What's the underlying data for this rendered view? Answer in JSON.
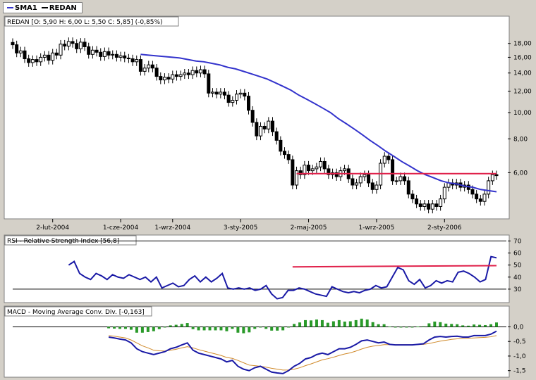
{
  "legend": {
    "items": [
      {
        "label": "SMA1",
        "color": "#3333cc"
      },
      {
        "label": "REDAN",
        "color": "#000000"
      }
    ]
  },
  "colors": {
    "background": "#d4d0c8",
    "panel": "#ffffff",
    "sma": "#3333cc",
    "resistance": "#e0204a",
    "rsi": "#1a1aa6",
    "macd": "#1a1aa6",
    "signal": "#d08a2a",
    "histogram": "#2a9a2a"
  },
  "chart_data": [
    {
      "type": "candlestick",
      "title": "REDAN [O: 5,90  H: 6,00  L: 5,50  C: 5,85] (-0,85%)",
      "y_scale": "log",
      "ylim": [
        4.2,
        20.5
      ],
      "yticks": [
        "18,00",
        "16,00",
        "14,00",
        "12,00",
        "10,00",
        "8,00",
        "6,00"
      ],
      "ytick_values": [
        18,
        16,
        14,
        12,
        10,
        8,
        6
      ],
      "x_labels": [
        "2-lut-2004",
        "1-cze-2004",
        "1-wrz-2004",
        "3-sty-2005",
        "2-maj-2005",
        "1-wrz-2005",
        "2-sty-2006"
      ],
      "x_label_positions": [
        10,
        27,
        40,
        57,
        74,
        91,
        108
      ],
      "n_weeks": 122,
      "close": [
        17.8,
        16.6,
        16.9,
        15.8,
        15.3,
        15.7,
        15.4,
        16.0,
        16.3,
        15.6,
        16.6,
        16.3,
        17.9,
        17.6,
        18.3,
        18.0,
        17.2,
        18.2,
        17.5,
        16.4,
        17.0,
        16.7,
        16.1,
        16.8,
        16.3,
        16.4,
        16.0,
        16.2,
        15.9,
        15.8,
        15.4,
        15.7,
        14.2,
        14.6,
        15.0,
        14.6,
        13.6,
        13.2,
        13.5,
        13.3,
        13.8,
        13.6,
        13.8,
        14.0,
        13.8,
        14.3,
        14.0,
        14.4,
        13.9,
        11.8,
        11.9,
        11.7,
        11.9,
        11.6,
        10.9,
        11.1,
        11.7,
        11.8,
        11.5,
        10.2,
        9.2,
        8.2,
        8.9,
        8.7,
        9.3,
        8.5,
        7.9,
        7.2,
        7.0,
        6.7,
        5.4,
        6.1,
        5.9,
        6.4,
        6.1,
        6.2,
        6.3,
        6.6,
        6.2,
        5.9,
        6.0,
        5.8,
        6.1,
        6.2,
        5.7,
        5.4,
        5.5,
        5.8,
        5.9,
        5.5,
        5.2,
        5.4,
        6.5,
        6.9,
        6.7,
        5.6,
        5.6,
        5.8,
        5.6,
        5.0,
        4.8,
        4.6,
        4.5,
        4.6,
        4.4,
        4.6,
        4.5,
        4.8,
        5.3,
        5.5,
        5.4,
        5.5,
        5.3,
        5.4,
        5.2,
        5.0,
        4.8,
        4.7,
        5.0,
        5.6,
        5.9,
        5.85
      ],
      "sma": [
        16.4,
        16.3,
        16.2,
        16.1,
        16.0,
        15.9,
        15.7,
        15.5,
        15.4,
        15.2,
        15.0,
        14.7,
        14.5,
        14.2,
        13.9,
        13.6,
        13.3,
        12.9,
        12.5,
        12.1,
        11.6,
        11.2,
        10.8,
        10.4,
        10.0,
        9.5,
        9.1,
        8.7,
        8.3,
        7.9,
        7.55,
        7.2,
        6.9,
        6.6,
        6.35,
        6.1,
        5.9,
        5.75,
        5.6,
        5.5,
        5.45,
        5.35,
        5.3,
        5.2,
        5.15,
        5.1
      ],
      "sma_start_week": 32,
      "resistance": {
        "value": 5.95,
        "from_week": 71,
        "to_week": 121
      }
    },
    {
      "type": "line",
      "title": "RSI - Relative Strength Index [56,8]",
      "ylim": [
        20,
        72
      ],
      "yticks": [
        "70",
        "60",
        "50",
        "40",
        "30"
      ],
      "ytick_values": [
        70,
        60,
        50,
        40,
        30
      ],
      "reference_lines": [
        30,
        70
      ],
      "start_week": 14,
      "values": [
        50,
        53,
        43,
        40,
        38,
        43,
        41,
        38,
        42,
        40,
        39,
        42,
        40,
        38,
        40,
        36,
        40,
        31,
        33,
        35,
        32,
        33,
        38,
        41,
        36,
        40,
        36,
        39,
        43,
        31,
        30,
        31,
        30,
        31,
        29,
        30,
        33,
        26,
        22,
        23,
        29,
        29,
        31,
        30,
        28,
        26,
        25,
        24,
        32,
        30,
        28,
        27,
        28,
        27,
        29,
        30,
        33,
        31,
        32,
        40,
        48,
        46,
        37,
        34,
        38,
        31,
        33,
        37,
        35,
        37,
        36,
        44,
        45,
        43,
        40,
        36,
        38,
        57,
        56
      ],
      "resistance": {
        "value": 48.5,
        "x_from_week": 70,
        "x_to_week": 121,
        "y_from": 48.5,
        "y_to": 49.5
      }
    },
    {
      "type": "line",
      "title": "MACD - Moving Average Conv. Div. [-0,163]",
      "ylim": [
        -1.7,
        0.3
      ],
      "yticks": [
        "0,0",
        "-0,5",
        "-1,0",
        "-1,5"
      ],
      "ytick_values": [
        0,
        -0.5,
        -1.0,
        -1.5
      ],
      "zero_line": 0,
      "start_week": 24,
      "macd": [
        -0.35,
        -0.38,
        -0.42,
        -0.45,
        -0.55,
        -0.75,
        -0.85,
        -0.9,
        -0.95,
        -0.9,
        -0.85,
        -0.75,
        -0.7,
        -0.62,
        -0.55,
        -0.8,
        -0.9,
        -0.95,
        -1.0,
        -1.05,
        -1.1,
        -1.2,
        -1.15,
        -1.35,
        -1.45,
        -1.5,
        -1.4,
        -1.35,
        -1.45,
        -1.55,
        -1.58,
        -1.6,
        -1.5,
        -1.35,
        -1.25,
        -1.1,
        -1.05,
        -0.95,
        -0.9,
        -0.95,
        -0.85,
        -0.75,
        -0.75,
        -0.7,
        -0.6,
        -0.48,
        -0.45,
        -0.5,
        -0.55,
        -0.52,
        -0.6,
        -0.62,
        -0.62,
        -0.62,
        -0.62,
        -0.6,
        -0.58,
        -0.45,
        -0.35,
        -0.33,
        -0.35,
        -0.33,
        -0.32,
        -0.35,
        -0.35,
        -0.3,
        -0.3,
        -0.3,
        -0.25,
        -0.15
      ],
      "signal": [
        -0.3,
        -0.32,
        -0.35,
        -0.38,
        -0.45,
        -0.55,
        -0.65,
        -0.72,
        -0.8,
        -0.82,
        -0.83,
        -0.8,
        -0.77,
        -0.72,
        -0.68,
        -0.72,
        -0.78,
        -0.83,
        -0.88,
        -0.93,
        -0.98,
        -1.05,
        -1.08,
        -1.15,
        -1.23,
        -1.31,
        -1.33,
        -1.35,
        -1.38,
        -1.42,
        -1.45,
        -1.48,
        -1.48,
        -1.45,
        -1.4,
        -1.33,
        -1.27,
        -1.2,
        -1.13,
        -1.09,
        -1.04,
        -0.98,
        -0.93,
        -0.89,
        -0.83,
        -0.76,
        -0.7,
        -0.66,
        -0.64,
        -0.61,
        -0.61,
        -0.61,
        -0.61,
        -0.61,
        -0.61,
        -0.61,
        -0.6,
        -0.57,
        -0.53,
        -0.49,
        -0.46,
        -0.43,
        -0.41,
        -0.4,
        -0.39,
        -0.38,
        -0.37,
        -0.36,
        -0.34,
        -0.3
      ],
      "histogram": [
        -0.05,
        -0.06,
        -0.07,
        -0.07,
        -0.1,
        -0.2,
        -0.2,
        -0.18,
        -0.15,
        -0.08,
        -0.02,
        0.05,
        0.07,
        0.1,
        0.13,
        -0.08,
        -0.12,
        -0.12,
        -0.12,
        -0.12,
        -0.12,
        -0.15,
        -0.07,
        -0.2,
        -0.22,
        -0.19,
        -0.07,
        0.0,
        -0.07,
        -0.13,
        -0.13,
        -0.12,
        -0.02,
        0.1,
        0.15,
        0.23,
        0.22,
        0.25,
        0.23,
        0.14,
        0.19,
        0.23,
        0.18,
        0.19,
        0.23,
        0.28,
        0.25,
        0.16,
        0.09,
        0.09,
        0.01,
        -0.01,
        -0.01,
        -0.01,
        -0.01,
        0.01,
        0.02,
        0.12,
        0.18,
        0.16,
        0.11,
        0.1,
        0.09,
        0.05,
        0.04,
        0.08,
        0.07,
        0.06,
        0.09,
        0.15
      ]
    }
  ]
}
